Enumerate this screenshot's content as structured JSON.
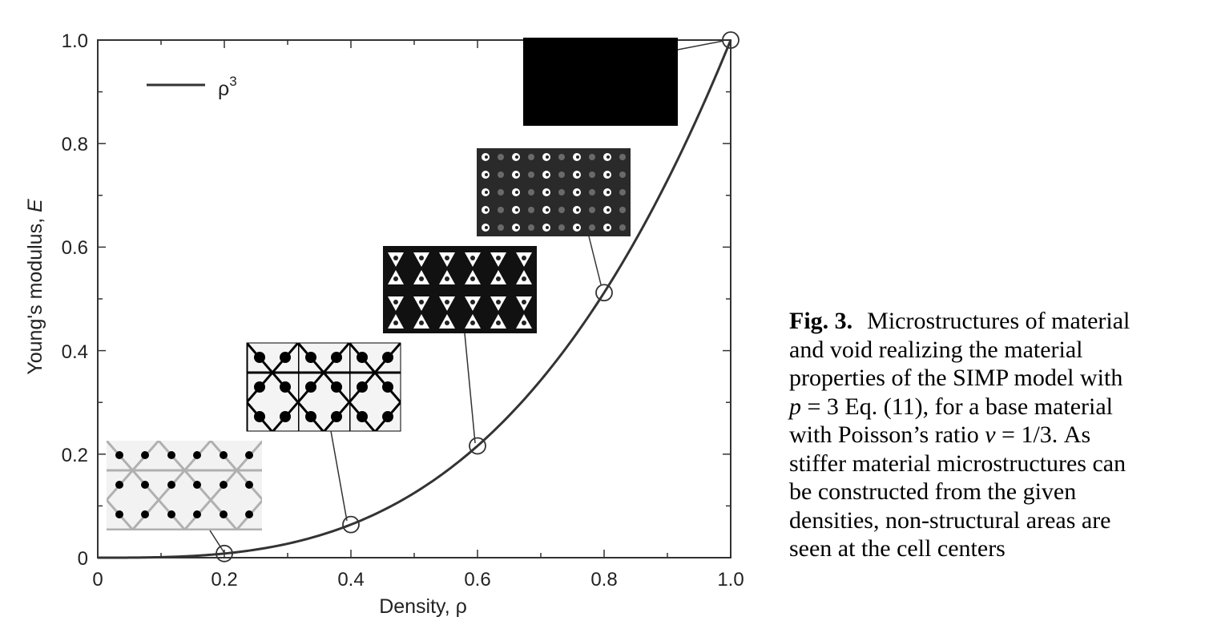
{
  "chart_data": {
    "type": "line",
    "xlabel": "Density, ρ",
    "ylabel_text": "Young's modulus, ",
    "ylabel_symbol": "E",
    "xlim": [
      0,
      1.0
    ],
    "ylim": [
      0,
      1.0
    ],
    "x_ticks": [
      "0",
      "0.2",
      "0.4",
      "0.6",
      "0.8",
      "1.0"
    ],
    "y_ticks": [
      "0",
      "0.2",
      "0.4",
      "0.6",
      "0.8",
      "1.0"
    ],
    "grid": false,
    "legend_position": "top-left",
    "series": [
      {
        "name": "ρ",
        "name_superscript": "3",
        "function": "rho^3",
        "color": "#333333"
      }
    ],
    "markers": [
      {
        "x": 0.2,
        "y": 0.008
      },
      {
        "x": 0.4,
        "y": 0.064
      },
      {
        "x": 0.6,
        "y": 0.216
      },
      {
        "x": 0.8,
        "y": 0.512
      },
      {
        "x": 1.0,
        "y": 1.0
      }
    ],
    "insets": [
      {
        "density": 0.2,
        "pattern": "light triangular lattice with dark dots"
      },
      {
        "density": 0.4,
        "pattern": "triangular lattice with dark dots"
      },
      {
        "density": 0.6,
        "pattern": "dark lattice with triangular holes"
      },
      {
        "density": 0.8,
        "pattern": "dark matrix with small holes"
      },
      {
        "density": 1.0,
        "pattern": "solid black"
      }
    ]
  },
  "caption": {
    "label": "Fig. 3.",
    "line1": "Microstructures of material",
    "line2": "and void realizing the material",
    "line3": "properties of the SIMP model with",
    "line4_var": "p",
    "line4_rest": " = 3 Eq. (11), for a base material",
    "line5_pre": "with Poisson’s ratio ",
    "line5_var": "ν",
    "line5_rest": " = 1/3. As",
    "line6": "stiffer material microstructures can",
    "line7": "be constructed from the given",
    "line8": "densities, non-structural areas are",
    "line9": "seen at the cell centers"
  },
  "colors": {
    "curve": "#333333",
    "axis": "#333333",
    "text": "#222222"
  }
}
